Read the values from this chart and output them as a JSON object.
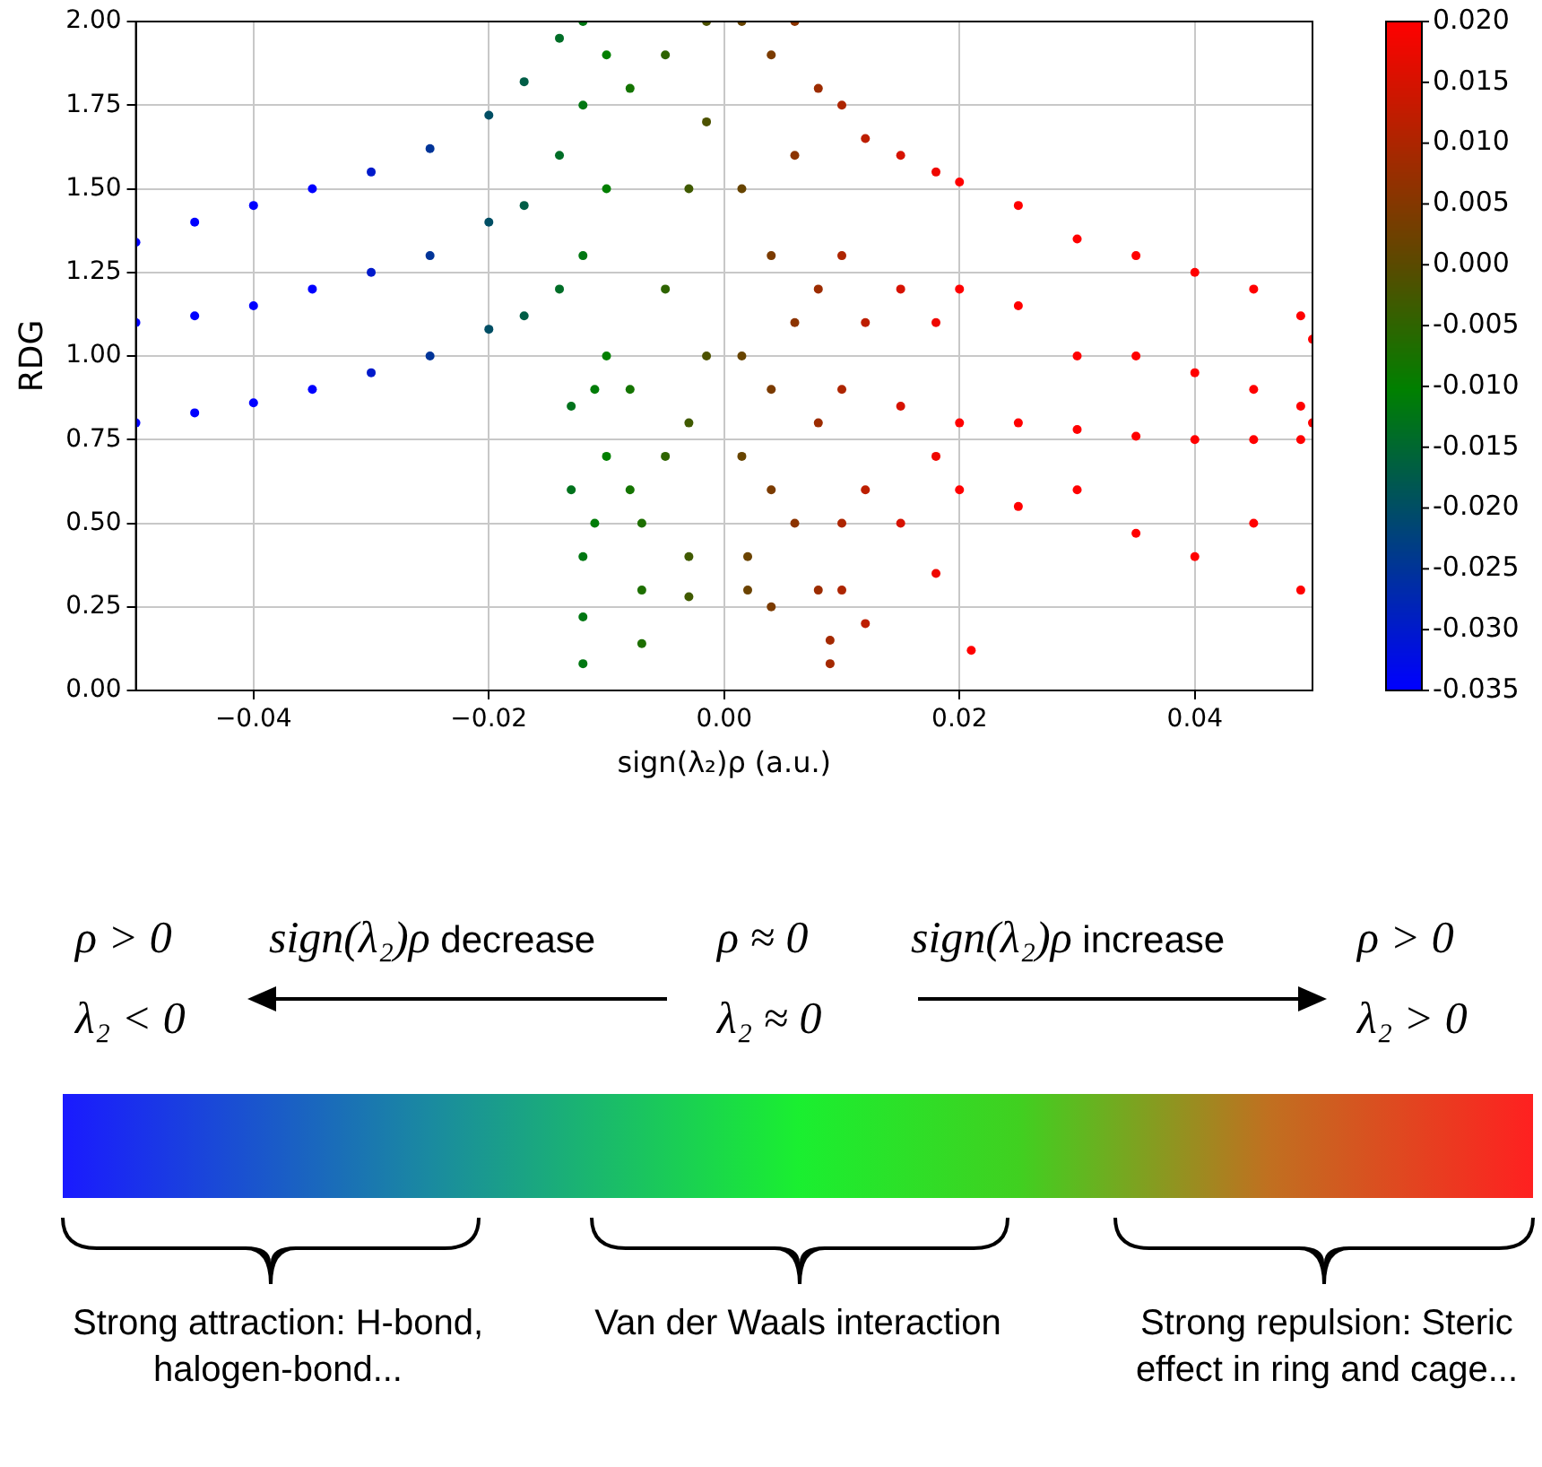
{
  "chart_data": {
    "type": "scatter",
    "xlabel": "sign(λ₂)ρ (a.u.)",
    "ylabel": "RDG",
    "xlim": [
      -0.05,
      0.05
    ],
    "xticks": [
      {
        "value": -0.04,
        "label": "−0.04"
      },
      {
        "value": -0.02,
        "label": "−0.02"
      },
      {
        "value": 0,
        "label": "0.00"
      },
      {
        "value": 0.02,
        "label": "0.02"
      },
      {
        "value": 0.04,
        "label": "0.04"
      }
    ],
    "ylim": [
      0,
      2
    ],
    "yticks": [
      {
        "value": 0,
        "label": "0.00"
      },
      {
        "value": 0.25,
        "label": "0.25"
      },
      {
        "value": 0.5,
        "label": "0.50"
      },
      {
        "value": 0.75,
        "label": "0.75"
      },
      {
        "value": 1,
        "label": "1.00"
      },
      {
        "value": 1.25,
        "label": "1.25"
      },
      {
        "value": 1.5,
        "label": "1.50"
      },
      {
        "value": 1.75,
        "label": "1.75"
      },
      {
        "value": 2,
        "label": "2.00"
      }
    ],
    "clim": [
      -0.035,
      0.02
    ],
    "cticks": [
      {
        "value": -0.035,
        "label": "-0.035"
      },
      {
        "value": -0.03,
        "label": "-0.030"
      },
      {
        "value": -0.025,
        "label": "-0.025"
      },
      {
        "value": -0.02,
        "label": "-0.020"
      },
      {
        "value": -0.015,
        "label": "-0.015"
      },
      {
        "value": -0.01,
        "label": "-0.010"
      },
      {
        "value": -0.005,
        "label": "-0.005"
      },
      {
        "value": 0,
        "label": "0.000"
      },
      {
        "value": 0.005,
        "label": "0.005"
      },
      {
        "value": 0.01,
        "label": "0.010"
      },
      {
        "value": 0.015,
        "label": "0.015"
      },
      {
        "value": 0.02,
        "label": "0.020"
      }
    ],
    "grid": true,
    "marker": "circle",
    "x": [
      -0.05,
      -0.05,
      -0.05,
      -0.045,
      -0.045,
      -0.045,
      -0.04,
      -0.04,
      -0.04,
      -0.035,
      -0.035,
      -0.035,
      -0.03,
      -0.03,
      -0.03,
      -0.025,
      -0.025,
      -0.025,
      -0.02,
      -0.02,
      -0.02,
      -0.017,
      -0.017,
      -0.017,
      -0.014,
      -0.014,
      -0.014,
      -0.012,
      -0.012,
      -0.012,
      -0.013,
      -0.013,
      -0.012,
      -0.012,
      -0.012,
      -0.011,
      -0.011,
      -0.01,
      -0.01,
      -0.01,
      -0.01,
      -0.008,
      -0.008,
      -0.008,
      -0.007,
      -0.007,
      -0.007,
      -0.005,
      -0.005,
      -0.005,
      -0.003,
      -0.003,
      -0.003,
      -0.003,
      -0.0015,
      -0.0015,
      -0.0015,
      0.0015,
      0.0015,
      0.0015,
      0.0015,
      0.002,
      0.002,
      0.004,
      0.004,
      0.004,
      0.004,
      0.004,
      0.006,
      0.006,
      0.006,
      0.006,
      0.008,
      0.008,
      0.008,
      0.008,
      0.009,
      0.009,
      0.01,
      0.01,
      0.01,
      0.01,
      0.01,
      0.012,
      0.012,
      0.012,
      0.012,
      0.015,
      0.015,
      0.015,
      0.015,
      0.018,
      0.018,
      0.018,
      0.018,
      0.02,
      0.02,
      0.02,
      0.02,
      0.021,
      0.025,
      0.025,
      0.025,
      0.025,
      0.03,
      0.03,
      0.03,
      0.03,
      0.035,
      0.035,
      0.035,
      0.035,
      0.04,
      0.04,
      0.04,
      0.04,
      0.045,
      0.045,
      0.045,
      0.045,
      0.049,
      0.049,
      0.049,
      0.049,
      0.05,
      0.05
    ],
    "values": [
      1.34,
      1.1,
      0.8,
      1.4,
      1.12,
      0.83,
      1.45,
      1.15,
      0.86,
      1.5,
      1.2,
      0.9,
      1.55,
      1.25,
      0.95,
      1.62,
      1.3,
      1.0,
      1.72,
      1.4,
      1.08,
      1.82,
      1.45,
      1.12,
      1.95,
      1.6,
      1.2,
      2.0,
      1.75,
      1.3,
      0.85,
      0.6,
      0.4,
      0.22,
      0.08,
      0.5,
      0.9,
      1.0,
      0.7,
      1.5,
      1.9,
      0.9,
      0.6,
      1.8,
      0.5,
      0.3,
      0.14,
      0.7,
      1.2,
      1.9,
      0.4,
      0.28,
      0.8,
      1.5,
      1.0,
      1.7,
      2.0,
      2.0,
      1.5,
      1.0,
      0.7,
      0.4,
      0.3,
      1.9,
      1.3,
      0.9,
      0.6,
      0.25,
      2.0,
      1.6,
      1.1,
      0.5,
      1.8,
      1.2,
      0.8,
      0.3,
      0.08,
      0.15,
      1.75,
      1.3,
      0.9,
      0.5,
      0.3,
      1.65,
      1.1,
      0.6,
      0.2,
      1.6,
      1.2,
      0.85,
      0.5,
      1.55,
      1.1,
      0.7,
      0.35,
      1.52,
      1.2,
      0.8,
      0.6,
      0.12,
      1.45,
      1.15,
      0.8,
      0.55,
      1.35,
      1.0,
      0.78,
      0.6,
      1.3,
      1.0,
      0.76,
      0.47,
      1.25,
      0.95,
      0.75,
      0.4,
      1.2,
      0.9,
      0.75,
      0.5,
      1.12,
      0.85,
      0.75,
      0.3,
      1.05,
      0.8
    ],
    "cvalues": [
      -0.035,
      -0.035,
      -0.035,
      -0.035,
      -0.035,
      -0.035,
      -0.035,
      -0.035,
      -0.035,
      -0.035,
      -0.035,
      -0.035,
      -0.03,
      -0.03,
      -0.03,
      -0.025,
      -0.025,
      -0.025,
      -0.02,
      -0.02,
      -0.02,
      -0.017,
      -0.017,
      -0.017,
      -0.014,
      -0.014,
      -0.014,
      -0.012,
      -0.012,
      -0.012,
      -0.013,
      -0.013,
      -0.012,
      -0.012,
      -0.012,
      -0.011,
      -0.011,
      -0.01,
      -0.01,
      -0.01,
      -0.01,
      -0.008,
      -0.008,
      -0.008,
      -0.007,
      -0.007,
      -0.007,
      -0.005,
      -0.005,
      -0.005,
      -0.003,
      -0.003,
      -0.003,
      -0.003,
      -0.0015,
      -0.0015,
      -0.0015,
      0.0015,
      0.0015,
      0.0015,
      0.0015,
      0.002,
      0.002,
      0.004,
      0.004,
      0.004,
      0.004,
      0.004,
      0.006,
      0.006,
      0.006,
      0.006,
      0.008,
      0.008,
      0.008,
      0.008,
      0.009,
      0.009,
      0.01,
      0.01,
      0.01,
      0.01,
      0.01,
      0.012,
      0.012,
      0.012,
      0.012,
      0.015,
      0.015,
      0.015,
      0.015,
      0.018,
      0.018,
      0.018,
      0.018,
      0.02,
      0.02,
      0.02,
      0.02,
      0.02,
      0.02,
      0.02,
      0.02,
      0.02,
      0.02,
      0.02,
      0.02,
      0.02,
      0.02,
      0.02,
      0.02,
      0.02,
      0.02,
      0.02,
      0.02,
      0.02,
      0.02,
      0.02,
      0.02,
      0.02,
      0.02,
      0.02,
      0.02,
      0.02,
      0.02,
      0.02
    ],
    "annotations": [
      "ρ > 0",
      "λ₂ < 0",
      "sign(λ₂)ρ decrease",
      "ρ ≈ 0",
      "λ₂ ≈ 0",
      "sign(λ₂)ρ increase",
      "ρ > 0",
      "λ₂ > 0",
      "Strong attraction: H-bond, halogen-bond...",
      "Van der Waals interaction",
      "Strong repulsion: Steric effect in ring and cage..."
    ]
  }
}
